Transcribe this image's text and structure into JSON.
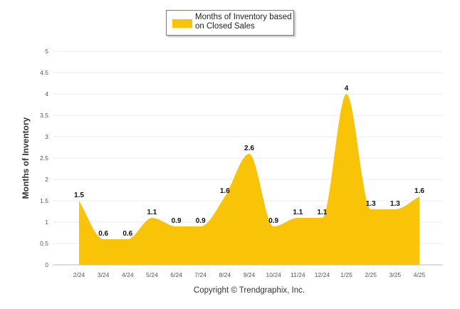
{
  "legend": {
    "label": "Months of Inventory based on Closed Sales"
  },
  "copyright": "Copyright © Trendgraphix, Inc.",
  "chart_data": {
    "type": "area",
    "categories": [
      "2/24",
      "3/24",
      "4/24",
      "5/24",
      "6/24",
      "7/24",
      "8/24",
      "9/24",
      "10/24",
      "11/24",
      "12/24",
      "1/25",
      "2/25",
      "3/25",
      "4/25"
    ],
    "series": [
      {
        "name": "Months of Inventory based on Closed Sales",
        "values": [
          1.5,
          0.6,
          0.6,
          1.1,
          0.9,
          0.9,
          1.6,
          2.6,
          0.9,
          1.1,
          1.1,
          4,
          1.3,
          1.3,
          1.6
        ],
        "color": "#f9c308"
      }
    ],
    "data_labels": [
      "1.5",
      "0.6",
      "0.6",
      "1.1",
      "0.9",
      "0.9",
      "1.6",
      "2.6",
      "0.9",
      "1.1",
      "1.1",
      "4",
      "1.3",
      "1.3",
      "1.6"
    ],
    "ylabel": "Months of Inventory",
    "xlabel": "",
    "ylim": [
      0,
      5
    ],
    "yticks": [
      "0",
      "0.5",
      "1",
      "1.5",
      "2",
      "2.5",
      "3",
      "3.5",
      "4",
      "4.5",
      "5"
    ],
    "grid": true,
    "legend_position": "top-center"
  }
}
